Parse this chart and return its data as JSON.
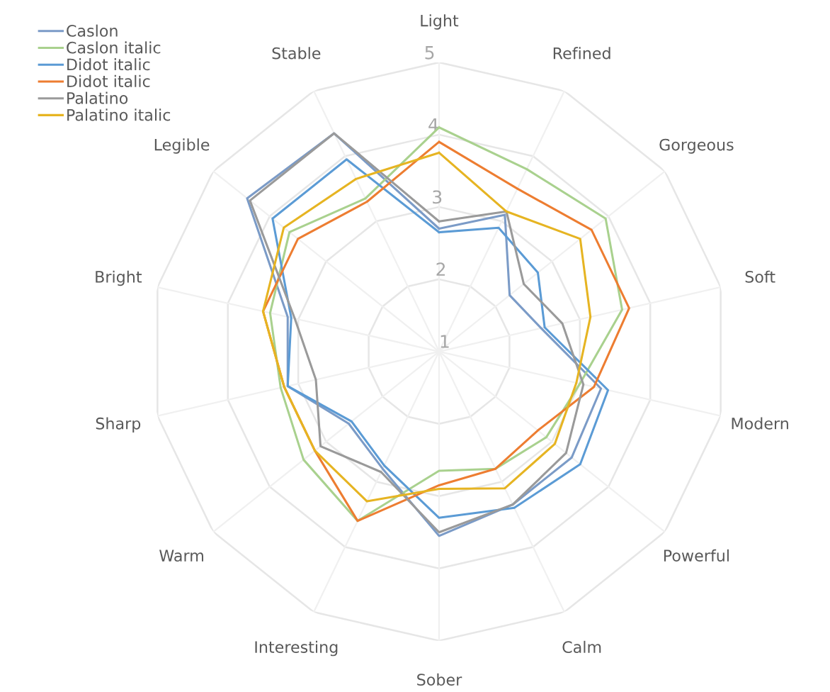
{
  "chart_data": {
    "type": "radar",
    "categories": [
      "Light",
      "Refined",
      "Gorgeous",
      "Soft",
      "Modern",
      "Powerful",
      "Calm",
      "Sober",
      "Interesting",
      "Warm",
      "Sharp",
      "Bright",
      "Legible",
      "Stable"
    ],
    "ylim": [
      1,
      5
    ],
    "yticks": [
      1,
      2,
      3,
      4,
      5
    ],
    "grid": true,
    "legend": "top left",
    "marker": "none",
    "line_style": "solid",
    "series": [
      {
        "name": "Caslon",
        "color": "#7b9bc7",
        "values": [
          2.7,
          3.1,
          2.25,
          2.45,
          3.3,
          3.35,
          3.35,
          3.55,
          2.8,
          2.6,
          3.15,
          3.15,
          4.4,
          4.35
        ]
      },
      {
        "name": "Caslon italic",
        "color": "#a9d18e",
        "values": [
          4.1,
          3.8,
          3.95,
          3.6,
          3.0,
          2.9,
          2.8,
          2.65,
          3.6,
          3.4,
          3.25,
          3.4,
          3.65,
          3.35
        ]
      },
      {
        "name": "Didot italic",
        "color": "#5b9bd5",
        "values": [
          2.65,
          2.9,
          2.75,
          2.5,
          3.4,
          3.5,
          3.4,
          3.3,
          2.75,
          2.55,
          3.15,
          3.1,
          3.95,
          3.95
        ]
      },
      {
        "name": "Didot italic",
        "color": "#ed7d31",
        "values": [
          3.9,
          3.5,
          3.7,
          3.7,
          3.2,
          2.75,
          2.8,
          2.85,
          3.6,
          3.2,
          3.2,
          3.5,
          3.5,
          3.3
        ]
      },
      {
        "name": "Palatino",
        "color": "#9a9a9a",
        "values": [
          2.8,
          3.15,
          2.5,
          2.75,
          3.05,
          3.25,
          3.35,
          3.5,
          2.85,
          3.1,
          2.75,
          3.05,
          4.35,
          4.35
        ]
      },
      {
        "name": "Palatino italic",
        "color": "#e6b422",
        "values": [
          3.75,
          3.15,
          3.5,
          3.15,
          2.95,
          3.05,
          3.1,
          2.9,
          3.3,
          3.2,
          3.2,
          3.5,
          3.75,
          3.65
        ]
      }
    ]
  }
}
